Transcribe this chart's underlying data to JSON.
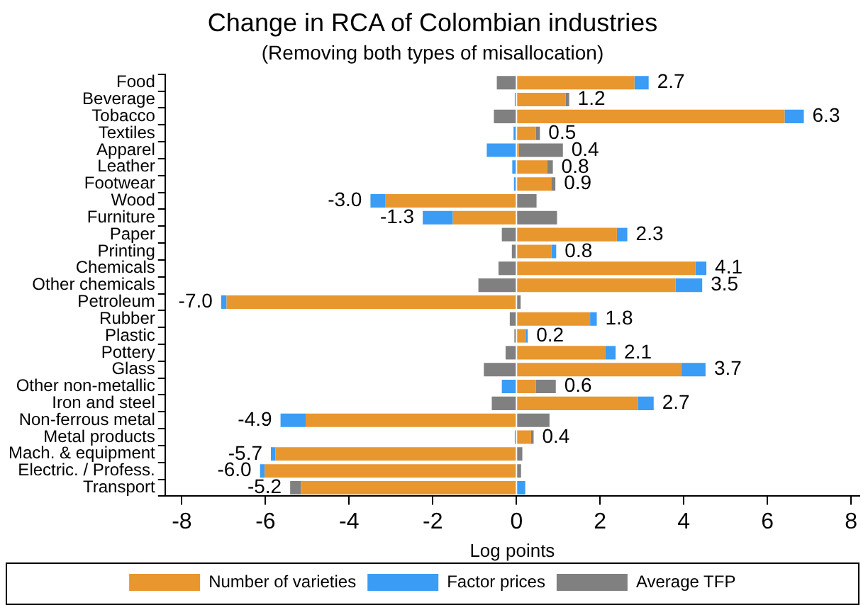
{
  "chart_data": {
    "type": "bar",
    "orientation": "horizontal",
    "stacked": true,
    "title": "Change in RCA of Colombian industries",
    "subtitle": "(Removing both types of misallocation)",
    "xlabel": "Log points",
    "categories": [
      "Food",
      "Beverage",
      "Tobacco",
      "Textiles",
      "Apparel",
      "Leather",
      "Footwear",
      "Wood",
      "Furniture",
      "Paper",
      "Printing",
      "Chemicals",
      "Other chemicals",
      "Petroleum",
      "Rubber",
      "Plastic",
      "Pottery",
      "Glass",
      "Other non-metallic",
      "Iron and steel",
      "Non-ferrous metal",
      "Metal products",
      "Mach. & equipment",
      "Electric. / Profess.",
      "Transport"
    ],
    "series": [
      {
        "name": "Number of varieties",
        "color": "#e8962e",
        "values": [
          2.82,
          1.18,
          6.41,
          0.46,
          0.06,
          0.73,
          0.83,
          -3.14,
          -1.52,
          2.4,
          0.84,
          4.28,
          3.8,
          -6.93,
          1.76,
          0.22,
          2.13,
          3.94,
          0.46,
          2.9,
          -5.04,
          0.35,
          -5.76,
          -6.02,
          -5.15
        ]
      },
      {
        "name": "Factor prices",
        "color": "#3a9cf5",
        "values": [
          0.34,
          -0.04,
          0.46,
          -0.07,
          -0.71,
          -0.1,
          -0.06,
          -0.35,
          -0.72,
          0.25,
          0.11,
          0.26,
          0.64,
          -0.13,
          0.16,
          0.05,
          0.24,
          0.58,
          -0.35,
          0.38,
          -0.6,
          -0.04,
          -0.11,
          -0.11,
          0.21
        ]
      },
      {
        "name": "Average TFP",
        "color": "#808080",
        "values": [
          -0.47,
          0.08,
          -0.54,
          0.1,
          1.05,
          0.14,
          0.1,
          0.48,
          0.97,
          -0.35,
          -0.11,
          -0.43,
          -0.91,
          0.1,
          -0.16,
          -0.05,
          -0.26,
          -0.78,
          0.48,
          -0.59,
          0.79,
          0.06,
          0.14,
          0.11,
          -0.26
        ]
      }
    ],
    "totals": [
      "2.7",
      "1.2",
      "6.3",
      "0.5",
      "0.4",
      "0.8",
      "0.9",
      "-3.0",
      "-1.3",
      "2.3",
      "0.8",
      "4.1",
      "3.5",
      "-7.0",
      "1.8",
      "0.2",
      "2.1",
      "3.7",
      "0.6",
      "2.7",
      "-4.9",
      "0.4",
      "-5.7",
      "-6.0",
      "-5.2"
    ],
    "xlim": [
      -8.4,
      8.2
    ],
    "xticks": [
      -8,
      -6,
      -4,
      -2,
      0,
      2,
      4,
      6,
      8
    ],
    "grid": false,
    "legend": "bottom"
  }
}
